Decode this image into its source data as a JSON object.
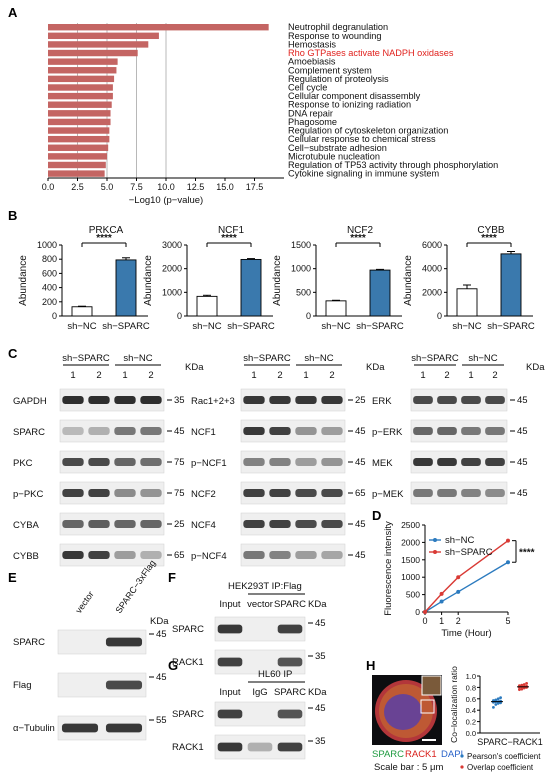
{
  "figure": {
    "panel_labels": [
      "A",
      "B",
      "C",
      "D",
      "E",
      "F",
      "G",
      "H"
    ]
  },
  "colors": {
    "enrich_bar": "#c46563",
    "sparc_bar": "#3a79ad",
    "highlight": "#e0211d",
    "nc_line": "#2c7bbf",
    "sparc_line": "#d93a35"
  },
  "panelA": {
    "chart_data": {
      "type": "bar",
      "orientation": "horizontal",
      "categories": [
        "Neutrophil degranulation",
        "Response to wounding",
        "Hemostasis",
        "Rho GTPases activate NADPH oxidases",
        "Amoebiasis",
        "Complement system",
        "Regulation of proteolysis",
        "Cell cycle",
        "Cellular component disassembly",
        "Response to ionizing radiation",
        "DNA repair",
        "Phagosome",
        "Regulation of cytoskeleton organization",
        "Cellular response to chemical stress",
        "Cell−substrate adhesion",
        "Microtubule nucleation",
        "Regulation of TP53 activity through phosphorylation",
        "Cytokine signaling in immune system"
      ],
      "highlight_index": 3,
      "values": [
        18.7,
        9.4,
        8.5,
        7.6,
        5.9,
        5.8,
        5.6,
        5.5,
        5.5,
        5.4,
        5.3,
        5.3,
        5.2,
        5.2,
        5.1,
        5.0,
        4.9,
        4.8
      ],
      "xlabel": "−Log10 (p−value)",
      "xlim": [
        0,
        20
      ],
      "xticks": [
        "0.0",
        "2.5",
        "5.0",
        "7.5",
        "10.0",
        "12.5",
        "15.0",
        "17.5"
      ],
      "grid": true
    }
  },
  "panelB": {
    "ylabel": "Abundance",
    "significance": "****",
    "chart_data": [
      {
        "type": "bar",
        "title": "PRKCA",
        "categories": [
          "sh−NC",
          "sh−SPARC"
        ],
        "values": [
          130,
          790
        ],
        "errors": [
          8,
          30
        ],
        "ylim": [
          0,
          1000
        ],
        "yticks": [
          "0",
          "200",
          "400",
          "600",
          "800",
          "1000"
        ]
      },
      {
        "type": "bar",
        "title": "NCF1",
        "categories": [
          "sh−NC",
          "sh−SPARC"
        ],
        "values": [
          830,
          2390
        ],
        "errors": [
          45,
          35
        ],
        "ylim": [
          0,
          3000
        ],
        "yticks": [
          "0",
          "1000",
          "2000",
          "3000"
        ]
      },
      {
        "type": "bar",
        "title": "NCF2",
        "categories": [
          "sh−NC",
          "sh−SPARC"
        ],
        "values": [
          320,
          970
        ],
        "errors": [
          12,
          15
        ],
        "ylim": [
          0,
          1500
        ],
        "yticks": [
          "0",
          "500",
          "1000",
          "1500"
        ]
      },
      {
        "type": "bar",
        "title": "CYBB",
        "categories": [
          "sh−NC",
          "sh−SPARC"
        ],
        "values": [
          2300,
          5250
        ],
        "errors": [
          320,
          200
        ],
        "ylim": [
          0,
          6000
        ],
        "yticks": [
          "0",
          "2000",
          "4000",
          "6000"
        ]
      }
    ]
  },
  "panelC": {
    "group_left": "sh−SPARC",
    "group_right": "sh−NC",
    "lanes": [
      "1",
      "2",
      "1",
      "2"
    ],
    "kda": "KDa",
    "col1": {
      "labels": [
        "GAPDH",
        "SPARC",
        "PKC",
        "p−PKC",
        "CYBA",
        "CYBB"
      ],
      "markers": [
        "35",
        "45",
        "75",
        "75",
        "25",
        "65"
      ]
    },
    "col2": {
      "labels": [
        "Rac1+2+3",
        "NCF1",
        "p−NCF1",
        "NCF2",
        "NCF4",
        "p−NCF4"
      ],
      "markers": [
        "25",
        "45",
        "45",
        "65",
        "45",
        "45"
      ]
    },
    "col3": {
      "labels": [
        "ERK",
        "p−ERK",
        "MEK",
        "p−MEK"
      ],
      "markers": [
        "45",
        "45",
        "45",
        "45"
      ]
    }
  },
  "panelD": {
    "chart_data": {
      "type": "line",
      "x": [
        0,
        1,
        2,
        5
      ],
      "xticks": [
        "0",
        "1",
        "2",
        "5"
      ],
      "series": [
        {
          "name": "sh−NC",
          "values": [
            0,
            300,
            580,
            1430
          ]
        },
        {
          "name": "sh−SPARC",
          "values": [
            0,
            520,
            1000,
            2050
          ]
        }
      ],
      "xlabel": "Time (Hour)",
      "ylabel": "Fluorescence intensity",
      "ylim": [
        0,
        2500
      ],
      "yticks": [
        "0",
        "500",
        "1000",
        "1500",
        "2000",
        "2500"
      ],
      "legend": "top-left",
      "significance": "****"
    }
  },
  "panelE": {
    "lanes": [
      "vector",
      "SPARC−3xFlag"
    ],
    "kda": "KDa",
    "labels": [
      "SPARC",
      "Flag",
      "α−Tubulin"
    ],
    "markers": [
      "45",
      "45",
      "55"
    ]
  },
  "panelF": {
    "header": "HEK293T  IP:Flag",
    "lanes": [
      "Input",
      "vector",
      "SPARC"
    ],
    "kda": "KDa",
    "labels": [
      "SPARC",
      "RACK1"
    ],
    "markers": [
      "45",
      "35"
    ]
  },
  "panelG": {
    "header": "HL60  IP",
    "lanes": [
      "Input",
      "IgG",
      "SPARC"
    ],
    "kda": "KDa",
    "labels": [
      "SPARC",
      "RACK1"
    ],
    "markers": [
      "45",
      "35"
    ]
  },
  "panelH": {
    "channel_sparc": "SPARC",
    "channel_rack1": "RACK1",
    "channel_dapi": "DAPI",
    "scale_bar": "Scale bar : 5 μm",
    "chart_data": {
      "type": "scatter",
      "ylabel": "Co−localization ratio",
      "xlabel": "SPARC−RACK1",
      "ylim": [
        0.0,
        1.0
      ],
      "yticks": [
        "0.0",
        "0.2",
        "0.4",
        "0.6",
        "0.8",
        "1.0"
      ],
      "series": [
        {
          "name": "Pearson's coefficient",
          "values": [
            0.45,
            0.5,
            0.52,
            0.53,
            0.54,
            0.55,
            0.55,
            0.56,
            0.57,
            0.58,
            0.6,
            0.62
          ],
          "mean": 0.55
        },
        {
          "name": "Overlap coefficient",
          "values": [
            0.76,
            0.77,
            0.79,
            0.8,
            0.8,
            0.81,
            0.81,
            0.82,
            0.83,
            0.84,
            0.85,
            0.87
          ],
          "mean": 0.81
        }
      ]
    }
  }
}
